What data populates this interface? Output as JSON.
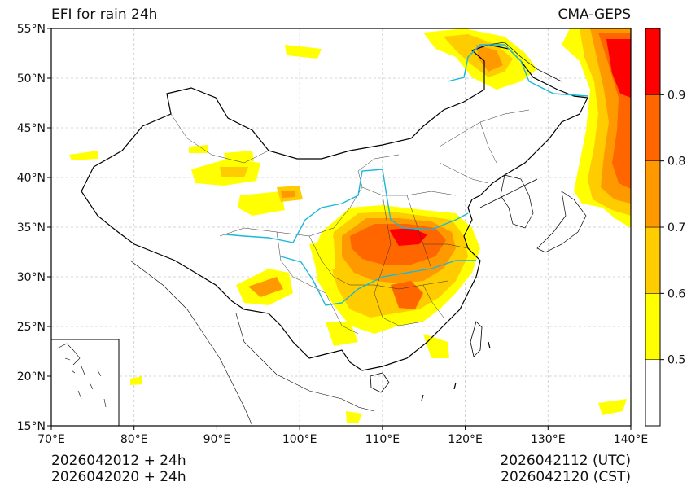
{
  "title_left": "EFI for rain 24h",
  "title_right": "CMA-GEPS",
  "footer": {
    "left_line1": "2026042012 + 24h",
    "left_line2": "2026042020 + 24h",
    "right_line1": "2026042112 (UTC)",
    "right_line2": "2026042120 (CST)"
  },
  "map": {
    "lon_range": [
      70,
      140
    ],
    "lat_range": [
      15,
      55
    ],
    "lon_ticks": [
      "70°E",
      "80°E",
      "90°E",
      "100°E",
      "110°E",
      "120°E",
      "130°E",
      "140°E"
    ],
    "lat_ticks": [
      "15°N",
      "20°N",
      "25°N",
      "30°N",
      "35°N",
      "40°N",
      "45°N",
      "50°N",
      "55°N"
    ],
    "grid": true
  },
  "colorbar": {
    "levels": [
      0.4,
      0.5,
      0.6,
      0.7,
      0.8,
      0.9,
      1.0
    ],
    "colors": [
      "#ffffff",
      "#ffff00",
      "#ffcc00",
      "#ff9900",
      "#ff6600",
      "#ff0000"
    ],
    "labels": [
      "0.5",
      "0.6",
      "0.7",
      "0.8",
      "0.9"
    ]
  },
  "colors": {
    "river": "#1cb8d8",
    "border": "#000000",
    "province": "#333333",
    "grid": "#c8c8c8"
  }
}
